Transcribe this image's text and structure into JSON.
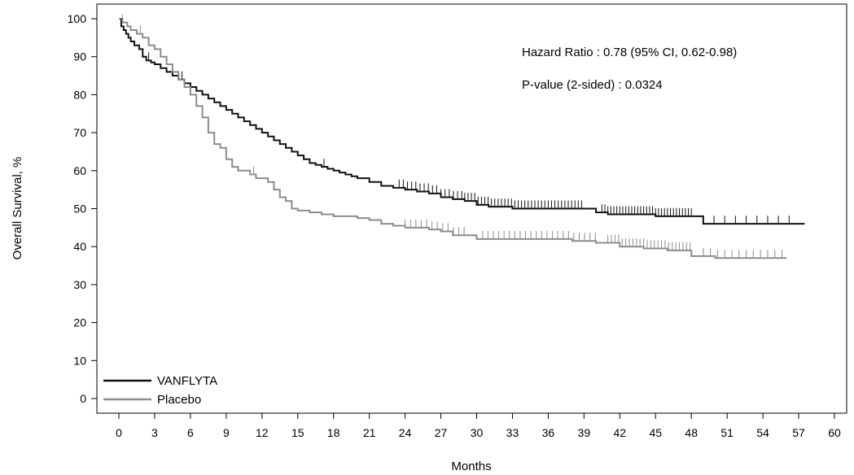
{
  "chart_data": {
    "type": "line",
    "title": "",
    "xlabel": "Months",
    "ylabel": "Overall Survival, %",
    "xlim": [
      0,
      60
    ],
    "ylim": [
      0,
      100
    ],
    "xticks": [
      0,
      3,
      6,
      9,
      12,
      15,
      18,
      21,
      24,
      27,
      30,
      33,
      36,
      39,
      42,
      45,
      48,
      51,
      54,
      57,
      60
    ],
    "yticks": [
      0,
      10,
      20,
      30,
      40,
      50,
      60,
      70,
      80,
      90,
      100
    ],
    "grid": false,
    "legend_position": "bottom-left",
    "annotations": [
      "Hazard Ratio : 0.78 (95% CI, 0.62-0.98)",
      "P-value (2-sided) : 0.0324"
    ],
    "series": [
      {
        "name": "VANFLYTA",
        "color": "#111111",
        "step": true,
        "x": [
          0,
          0.2,
          0.4,
          0.6,
          0.8,
          1.0,
          1.3,
          1.7,
          2.0,
          2.3,
          2.7,
          3.0,
          3.5,
          4.0,
          4.5,
          5.0,
          5.5,
          6.0,
          6.5,
          7.0,
          7.5,
          8.0,
          8.5,
          9.0,
          9.5,
          10.0,
          10.5,
          11.0,
          11.5,
          12.0,
          12.5,
          13.0,
          13.5,
          14.0,
          14.5,
          15.0,
          15.5,
          16.0,
          16.5,
          17.0,
          17.5,
          18.0,
          18.5,
          19.0,
          19.5,
          20.0,
          21.0,
          22.0,
          23.0,
          24.0,
          25.0,
          26.0,
          27.0,
          28.0,
          29.0,
          30.0,
          31.0,
          33.0,
          35.0,
          37.0,
          39.0,
          40.0,
          41.0,
          43.0,
          45.0,
          48.0,
          49.0,
          52.0,
          54.0,
          57.5
        ],
        "y": [
          100,
          98,
          97,
          96,
          95,
          94,
          93,
          92,
          90,
          89,
          88.5,
          88,
          87,
          86,
          85,
          84,
          83,
          82,
          81,
          80,
          79,
          78,
          77,
          76,
          75,
          74,
          73,
          72,
          71,
          70,
          69,
          68,
          67,
          66,
          65,
          64,
          63,
          62,
          61.5,
          61,
          60.5,
          60,
          59.5,
          59,
          58.5,
          58,
          57,
          56,
          55.5,
          55,
          54.5,
          54,
          53,
          52.5,
          52,
          51,
          50.5,
          50,
          50,
          50,
          50,
          49,
          48.5,
          48.5,
          48,
          48,
          46,
          46,
          46,
          46
        ]
      },
      {
        "name": "Placebo",
        "color": "#8c8c8c",
        "step": true,
        "x": [
          0,
          0.3,
          0.7,
          1.0,
          1.5,
          2.0,
          2.5,
          3.0,
          3.5,
          4.0,
          4.5,
          5.0,
          5.5,
          6.0,
          6.5,
          7.0,
          7.5,
          8.0,
          8.5,
          9.0,
          9.5,
          10.0,
          10.5,
          11.0,
          11.5,
          12.0,
          12.5,
          13.0,
          13.5,
          14.0,
          14.5,
          15.0,
          16.0,
          17.0,
          18.0,
          19.0,
          20.0,
          21.0,
          22.0,
          23.0,
          24.0,
          25.0,
          26.0,
          27.0,
          28.0,
          29.0,
          30.0,
          32.0,
          34.0,
          36.0,
          38.0,
          40.0,
          41.0,
          42.0,
          44.0,
          46.0,
          48.0,
          50.0,
          52.0,
          54.0,
          56.0
        ],
        "y": [
          100,
          99,
          98,
          97,
          96,
          95,
          93,
          92,
          90,
          88,
          86,
          84,
          82,
          80,
          77,
          74,
          70,
          67,
          66,
          63,
          61,
          60,
          60,
          59,
          58,
          58,
          57,
          55,
          53,
          52,
          50,
          49.5,
          49,
          48.5,
          48,
          48,
          47.5,
          47,
          46,
          45.5,
          45,
          45,
          44.5,
          44,
          43,
          43,
          42,
          42,
          42,
          42,
          41.5,
          41,
          41,
          40,
          39.5,
          39,
          37.5,
          37,
          37,
          37,
          37
        ]
      }
    ]
  }
}
